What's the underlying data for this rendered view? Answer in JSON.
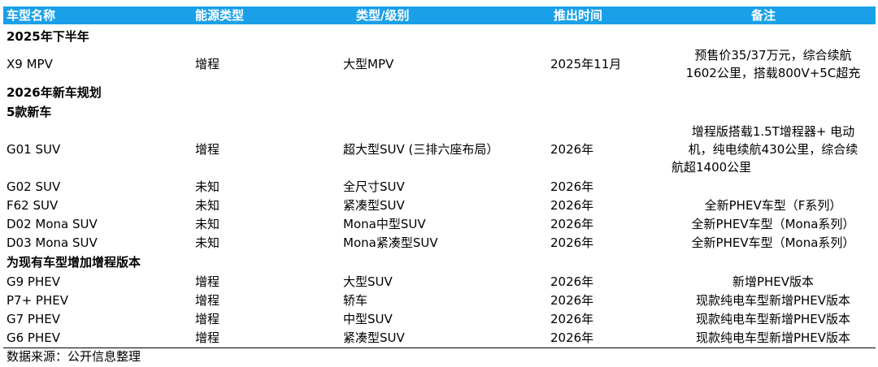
{
  "header": {
    "name": "车型名称",
    "energy": "能源类型",
    "type": "类型/级别",
    "date": "推出时间",
    "note": "备注"
  },
  "sections": {
    "h2_2025": "2025年下半年",
    "plan_2026": "2026年新车规划",
    "five_new": "5款新车",
    "erev_add": "为现有车型增加增程版本"
  },
  "rows": {
    "x9": {
      "name": "X9 MPV",
      "energy": "增程",
      "type": "大型MPV",
      "date": "2025年11月",
      "note1": "预售价35/37万元，综合续航",
      "note2": "1602公里，搭载800V+5C超充"
    },
    "g01": {
      "name": "G01 SUV",
      "energy": "增程",
      "type": "超大型SUV (三排六座布局）",
      "date": "2026年",
      "note1": "增程版搭载1.5T增程器+ 电动",
      "note2": "机，纯电续航430公里，综合续",
      "note3": "航超1400公里"
    },
    "g02": {
      "name": "G02 SUV",
      "energy": "未知",
      "type": "全尺寸SUV",
      "date": "2026年",
      "note": ""
    },
    "f62": {
      "name": "F62 SUV",
      "energy": "未知",
      "type": "紧凑型SUV",
      "date": "2026年",
      "note": "全新PHEV车型（F系列）"
    },
    "d02": {
      "name": "D02 Mona SUV",
      "energy": "未知",
      "type": "Mona中型SUV",
      "date": "2026年",
      "note": "全新PHEV车型（Mona系列）"
    },
    "d03": {
      "name": "D03 Mona SUV",
      "energy": "未知",
      "type": "Mona紧凑型SUV",
      "date": "2026年",
      "note": "全新PHEV车型（Mona系列）"
    },
    "g9": {
      "name": "G9 PHEV",
      "energy": "增程",
      "type": "大型SUV",
      "date": "2026年",
      "note": "新增PHEV版本"
    },
    "p7": {
      "name": "P7+ PHEV",
      "energy": "增程",
      "type": "轿车",
      "date": "2026年",
      "note": "现款纯电车型新增PHEV版本"
    },
    "g7": {
      "name": "G7 PHEV",
      "energy": "增程",
      "type": "中型SUV",
      "date": "2026年",
      "note": "现款纯电车型新增PHEV版本"
    },
    "g6": {
      "name": "G6 PHEV",
      "energy": "增程",
      "type": "紧凑型SUV",
      "date": "2026年",
      "note": "现款纯电车型新增PHEV版本"
    }
  },
  "footer": {
    "source": "数据来源：公开信息整理"
  },
  "colors": {
    "header_bg": "#1aa0e8",
    "header_text": "#ffffff"
  }
}
